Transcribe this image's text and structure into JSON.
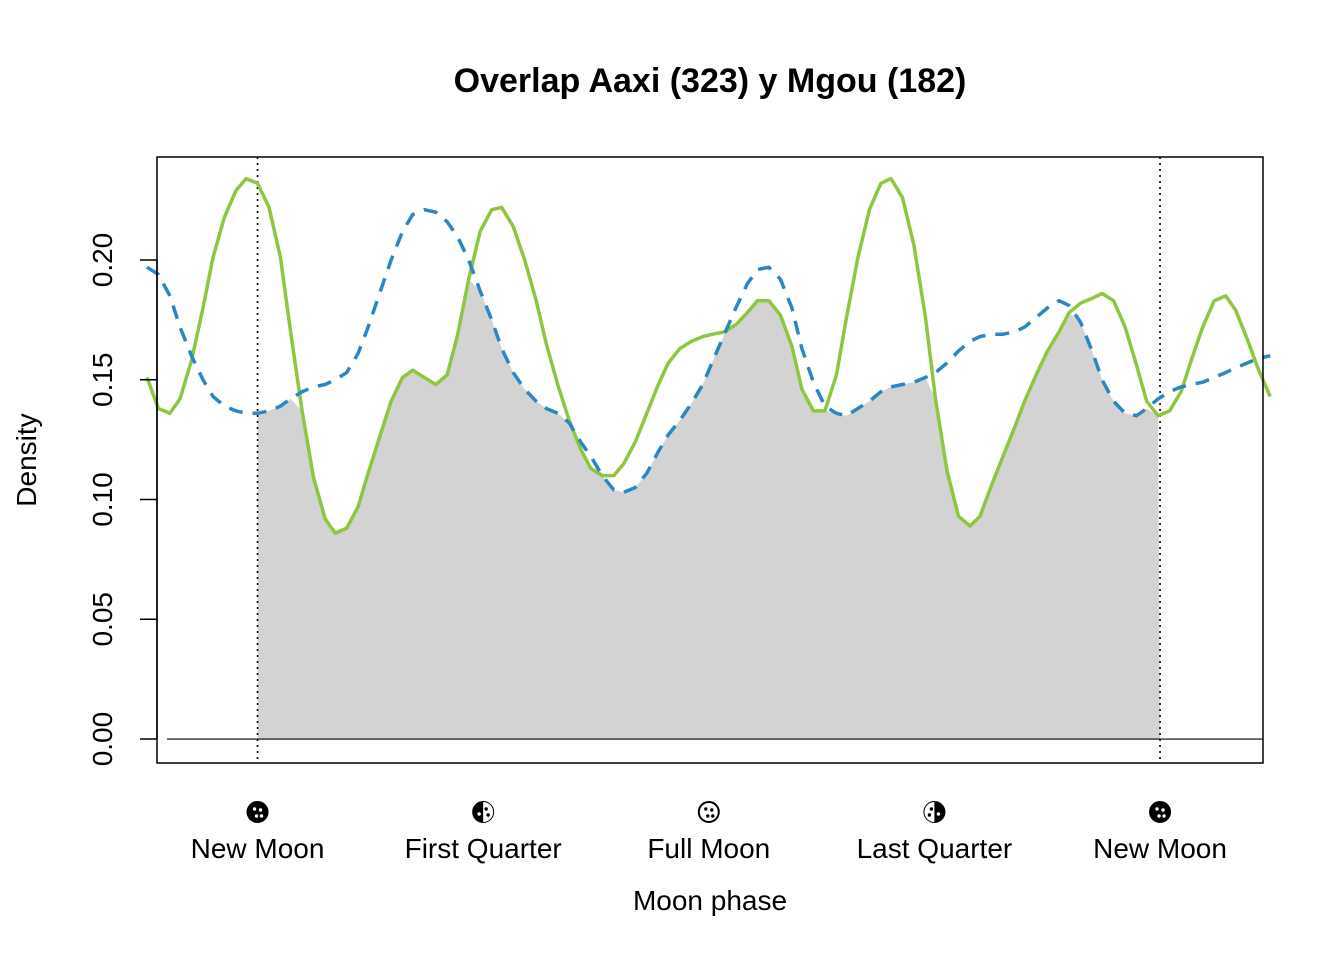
{
  "chart_data": {
    "type": "line",
    "title": "Overlap Aaxi (323) y Mgou (182)",
    "xlabel": "Moon phase",
    "ylabel": "Density",
    "xlim": [
      -0.7,
      7.0
    ],
    "ylim": [
      -0.01,
      0.243
    ],
    "yticks": [
      0.0,
      0.05,
      0.1,
      0.15,
      0.2
    ],
    "ytick_labels": [
      "0.00",
      "0.05",
      "0.10",
      "0.15",
      "0.20"
    ],
    "xticks": [
      0,
      1.5708,
      3.1416,
      4.7124,
      6.2832
    ],
    "xtick_labels": [
      "New Moon",
      "First Quarter",
      "Full Moon",
      "Last Quarter",
      "New Moon"
    ],
    "xtick_icons": [
      "new-moon-icon",
      "first-quarter-icon",
      "full-moon-icon",
      "last-quarter-icon",
      "new-moon-icon"
    ],
    "vlines": [
      0,
      6.2832
    ],
    "overlap_fill_color": "#d3d3d3",
    "series": [
      {
        "color": "#8dc63f",
        "linestyle": "solid",
        "x": [
          -0.77,
          -0.69,
          -0.61,
          -0.54,
          -0.46,
          -0.38,
          -0.31,
          -0.23,
          -0.15,
          -0.08,
          0.0,
          0.08,
          0.16,
          0.23,
          0.31,
          0.39,
          0.47,
          0.54,
          0.62,
          0.7,
          0.77,
          0.85,
          0.93,
          1.01,
          1.08,
          1.16,
          1.24,
          1.32,
          1.39,
          1.47,
          1.55,
          1.63,
          1.7,
          1.78,
          1.86,
          1.94,
          2.01,
          2.09,
          2.17,
          2.25,
          2.32,
          2.4,
          2.48,
          2.55,
          2.63,
          2.71,
          2.79,
          2.86,
          2.94,
          3.02,
          3.1,
          3.17,
          3.25,
          3.33,
          3.41,
          3.48,
          3.56,
          3.64,
          3.72,
          3.79,
          3.87,
          3.95,
          4.03,
          4.1,
          4.18,
          4.26,
          4.34,
          4.41,
          4.49,
          4.57,
          4.65,
          4.72,
          4.8,
          4.88,
          4.96,
          5.03,
          5.11,
          5.19,
          5.27,
          5.34,
          5.42,
          5.5,
          5.58,
          5.65,
          5.73,
          5.81,
          5.88,
          5.96,
          6.04,
          6.12,
          6.19,
          6.27,
          6.35,
          6.43,
          6.5,
          6.58,
          6.66,
          6.74,
          6.81,
          6.89,
          6.97,
          7.05
        ],
        "values": [
          0.151,
          0.138,
          0.136,
          0.142,
          0.158,
          0.18,
          0.201,
          0.218,
          0.229,
          0.234,
          0.232,
          0.222,
          0.201,
          0.17,
          0.137,
          0.109,
          0.092,
          0.086,
          0.088,
          0.097,
          0.111,
          0.126,
          0.141,
          0.151,
          0.154,
          0.151,
          0.148,
          0.152,
          0.168,
          0.192,
          0.212,
          0.221,
          0.222,
          0.214,
          0.2,
          0.183,
          0.165,
          0.148,
          0.133,
          0.121,
          0.113,
          0.11,
          0.11,
          0.115,
          0.124,
          0.136,
          0.148,
          0.157,
          0.163,
          0.166,
          0.168,
          0.169,
          0.17,
          0.173,
          0.178,
          0.183,
          0.183,
          0.177,
          0.164,
          0.146,
          0.137,
          0.137,
          0.152,
          0.176,
          0.201,
          0.221,
          0.232,
          0.234,
          0.226,
          0.206,
          0.176,
          0.142,
          0.112,
          0.093,
          0.089,
          0.093,
          0.106,
          0.118,
          0.13,
          0.141,
          0.152,
          0.162,
          0.17,
          0.178,
          0.182,
          0.184,
          0.186,
          0.183,
          0.172,
          0.156,
          0.141,
          0.135,
          0.137,
          0.145,
          0.158,
          0.172,
          0.183,
          0.185,
          0.179,
          0.167,
          0.154,
          0.143
        ]
      },
      {
        "color": "#2b87c3",
        "linestyle": "dashed",
        "x": [
          -0.77,
          -0.69,
          -0.61,
          -0.54,
          -0.46,
          -0.38,
          -0.31,
          -0.23,
          -0.15,
          -0.08,
          0.0,
          0.08,
          0.16,
          0.23,
          0.31,
          0.39,
          0.47,
          0.54,
          0.62,
          0.7,
          0.77,
          0.85,
          0.93,
          1.01,
          1.08,
          1.16,
          1.24,
          1.32,
          1.39,
          1.47,
          1.55,
          1.63,
          1.7,
          1.78,
          1.86,
          1.94,
          2.01,
          2.09,
          2.17,
          2.25,
          2.32,
          2.4,
          2.48,
          2.55,
          2.63,
          2.71,
          2.79,
          2.86,
          2.94,
          3.02,
          3.1,
          3.17,
          3.25,
          3.33,
          3.41,
          3.48,
          3.56,
          3.64,
          3.72,
          3.79,
          3.87,
          3.95,
          4.03,
          4.1,
          4.18,
          4.26,
          4.34,
          4.41,
          4.49,
          4.57,
          4.65,
          4.72,
          4.8,
          4.88,
          4.96,
          5.03,
          5.11,
          5.19,
          5.27,
          5.34,
          5.42,
          5.5,
          5.58,
          5.65,
          5.73,
          5.81,
          5.88,
          5.96,
          6.04,
          6.12,
          6.19,
          6.27,
          6.35,
          6.43,
          6.5,
          6.58,
          6.66,
          6.74,
          6.81,
          6.89,
          6.97,
          7.05
        ],
        "values": [
          0.197,
          0.194,
          0.185,
          0.172,
          0.16,
          0.15,
          0.143,
          0.139,
          0.137,
          0.136,
          0.136,
          0.137,
          0.139,
          0.142,
          0.145,
          0.147,
          0.148,
          0.15,
          0.153,
          0.161,
          0.172,
          0.186,
          0.2,
          0.212,
          0.219,
          0.221,
          0.22,
          0.216,
          0.21,
          0.2,
          0.187,
          0.175,
          0.163,
          0.153,
          0.146,
          0.141,
          0.138,
          0.136,
          0.132,
          0.124,
          0.118,
          0.11,
          0.104,
          0.103,
          0.105,
          0.111,
          0.12,
          0.127,
          0.133,
          0.14,
          0.148,
          0.158,
          0.169,
          0.18,
          0.19,
          0.196,
          0.197,
          0.192,
          0.18,
          0.163,
          0.149,
          0.139,
          0.136,
          0.135,
          0.138,
          0.141,
          0.145,
          0.147,
          0.148,
          0.149,
          0.151,
          0.153,
          0.157,
          0.162,
          0.166,
          0.168,
          0.169,
          0.169,
          0.17,
          0.172,
          0.176,
          0.18,
          0.183,
          0.181,
          0.174,
          0.162,
          0.15,
          0.141,
          0.136,
          0.135,
          0.138,
          0.142,
          0.145,
          0.147,
          0.148,
          0.149,
          0.151,
          0.153,
          0.155,
          0.157,
          0.159,
          0.16
        ]
      }
    ]
  }
}
